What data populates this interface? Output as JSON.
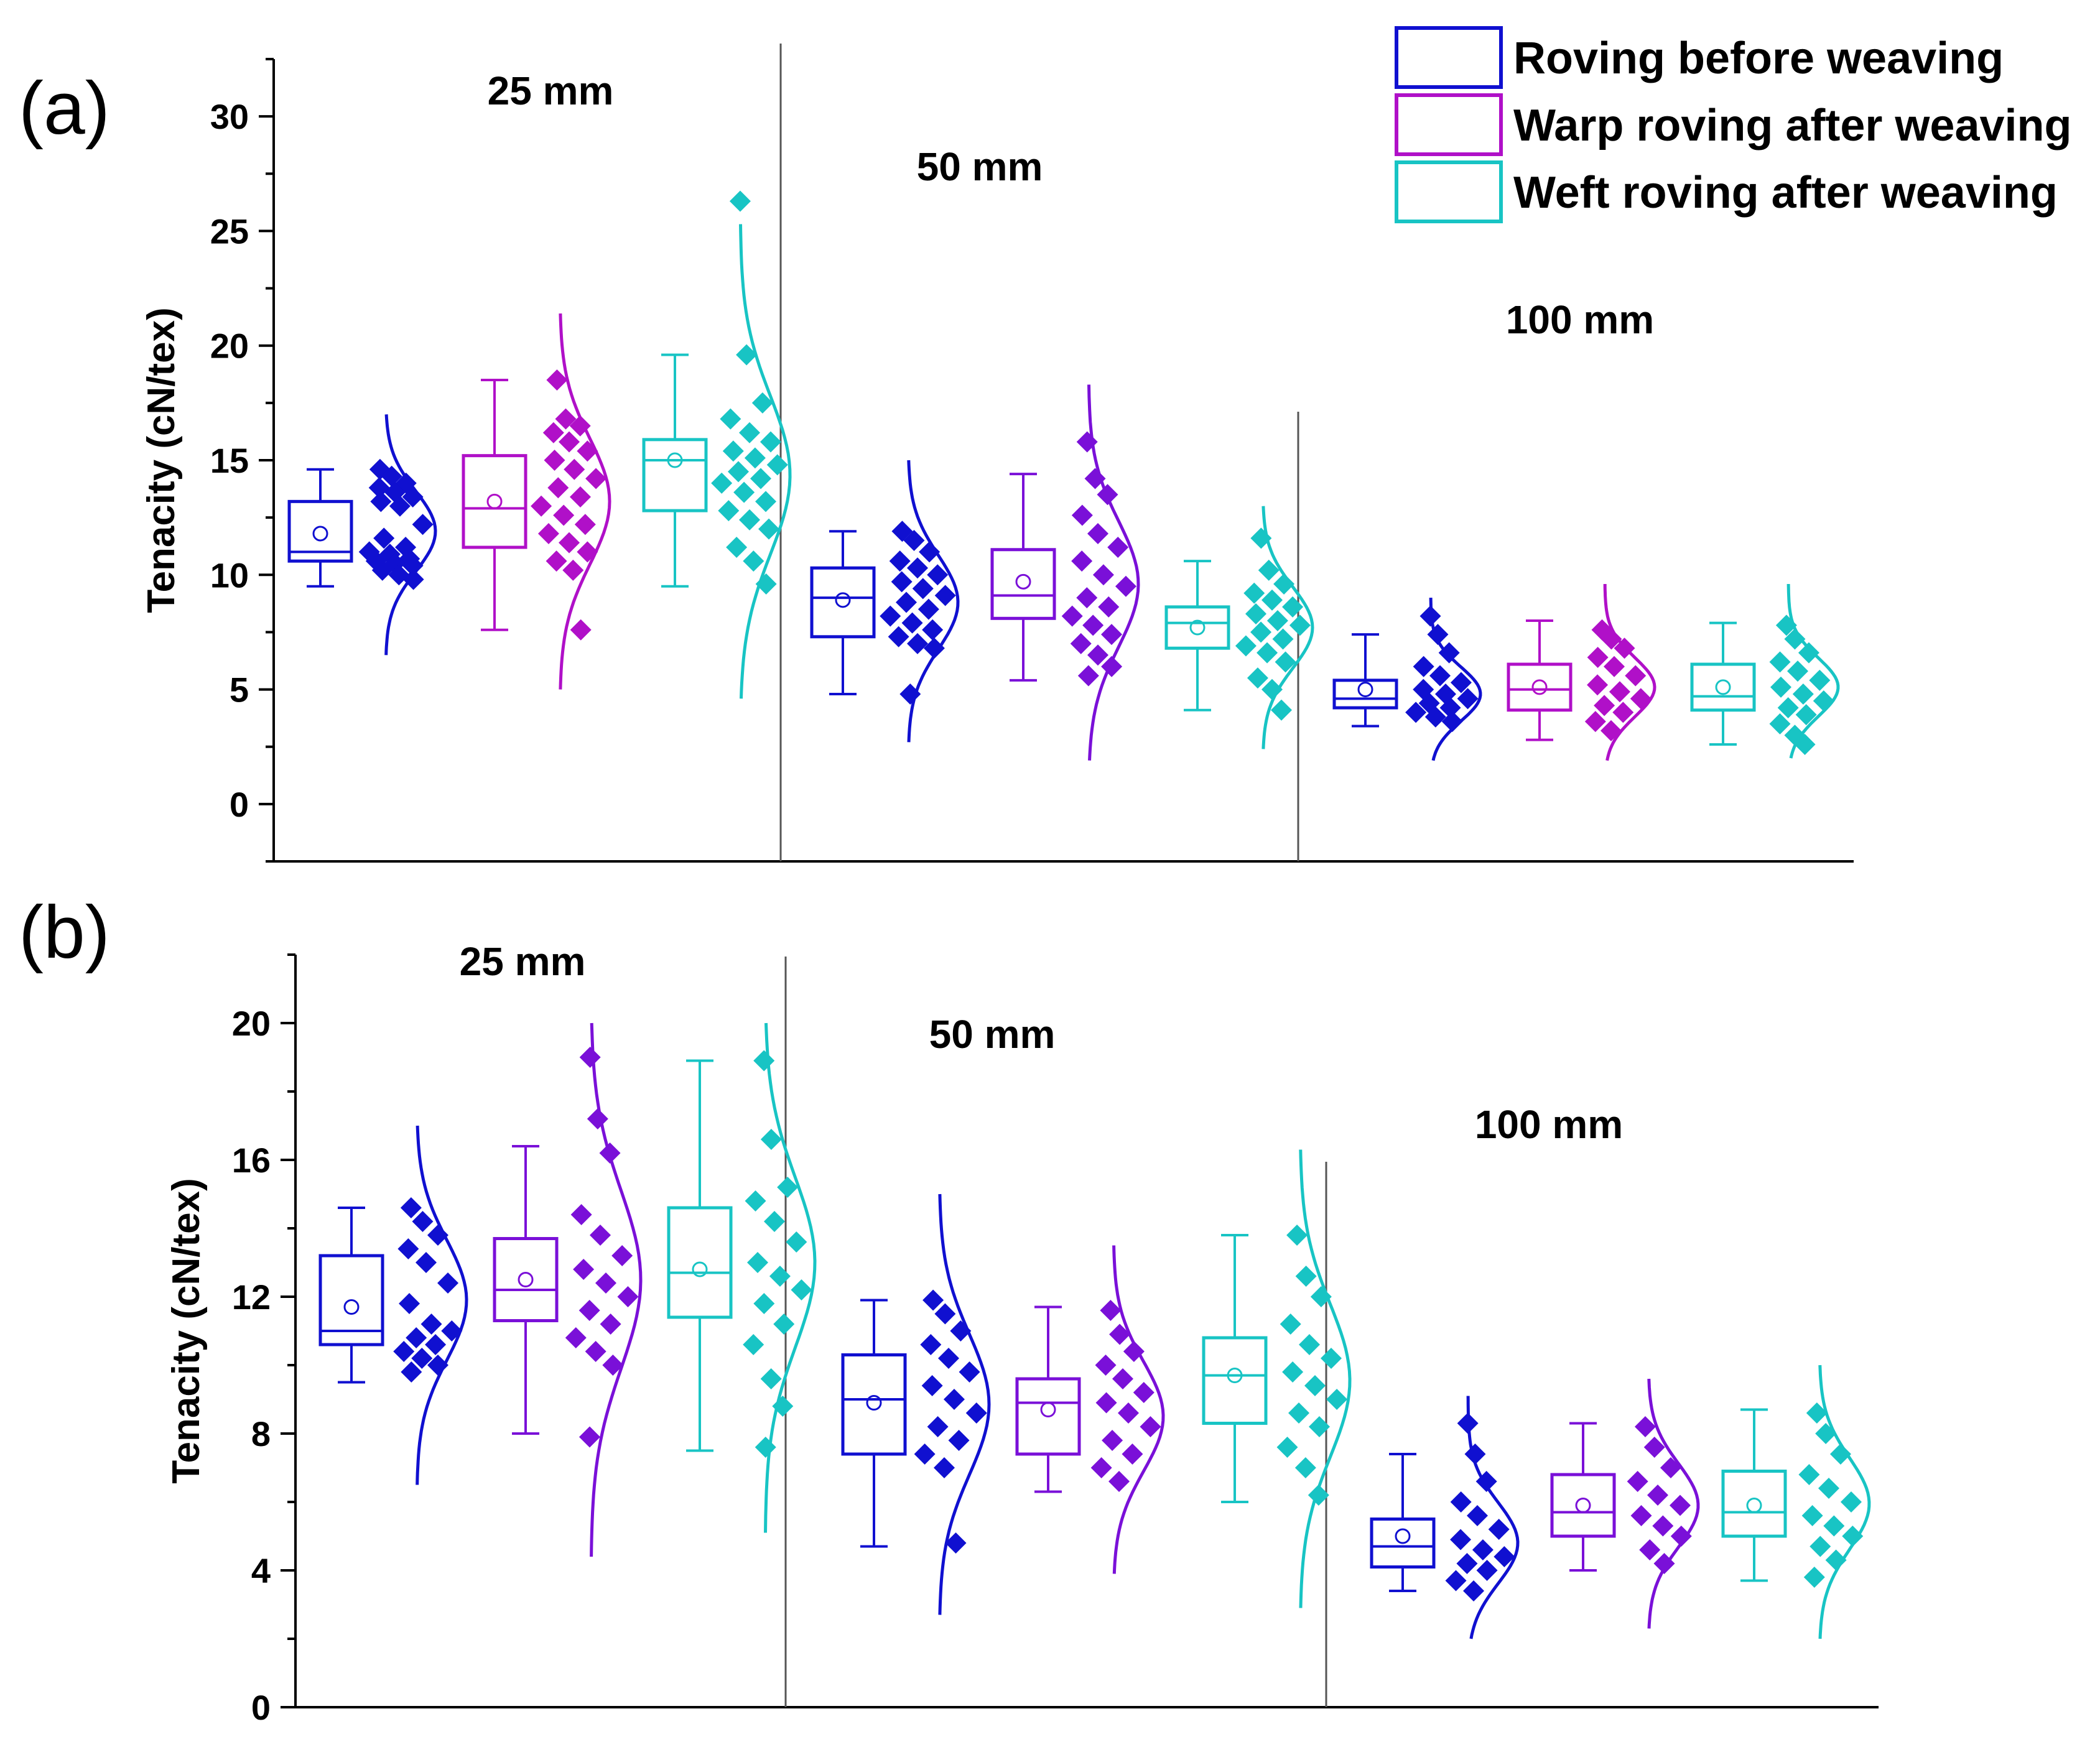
{
  "colors": {
    "roving_before": "#1010d0",
    "warp_after_a": "#b010c8",
    "warp_after_b": "#7a10d8",
    "weft_after": "#18c4c4"
  },
  "legend": {
    "position": "top-right",
    "items": [
      {
        "label": "Roving before weaving",
        "color": "#1010d0"
      },
      {
        "label": "Warp roving after weaving",
        "color": "#b010c8"
      },
      {
        "label": "Weft roving after weaving",
        "color": "#18c4c4"
      }
    ]
  },
  "chart_data": [
    {
      "type": "box",
      "panel_label": "(a)",
      "ylabel": "Tenacity (cN/tex)",
      "ylim": [
        -2.5,
        32.5
      ],
      "yticks": [
        0,
        5,
        10,
        15,
        20,
        25,
        30
      ],
      "groups": [
        {
          "label": "25 mm",
          "boxes": [
            {
              "series": "Roving before weaving",
              "color": "#1010d0",
              "whisker_low": 9.5,
              "q1": 10.6,
              "median": 11.0,
              "q3": 13.2,
              "whisker_high": 14.6,
              "mean": 11.8,
              "points": [
                14.6,
                14.3,
                14.0,
                13.8,
                13.6,
                13.4,
                13.2,
                13.0,
                12.2,
                11.6,
                11.2,
                11.0,
                10.9,
                10.7,
                10.6,
                10.5,
                10.4,
                10.2,
                10.0,
                9.8
              ],
              "curve_range": [
                6.5,
                17.0
              ]
            },
            {
              "series": "Warp roving after weaving",
              "color": "#b010c8",
              "whisker_low": 7.6,
              "q1": 11.2,
              "median": 12.9,
              "q3": 15.2,
              "whisker_high": 18.5,
              "mean": 13.2,
              "points": [
                18.5,
                16.8,
                16.5,
                16.2,
                15.8,
                15.4,
                15.0,
                14.6,
                14.2,
                13.8,
                13.4,
                13.0,
                12.6,
                12.2,
                11.8,
                11.4,
                11.0,
                10.6,
                10.2,
                7.6
              ],
              "curve_range": [
                5.0,
                21.4
              ]
            },
            {
              "series": "Weft roving after weaving",
              "color": "#18c4c4",
              "whisker_low": 9.5,
              "q1": 12.8,
              "median": 15.0,
              "q3": 15.9,
              "whisker_high": 19.6,
              "mean": 15.0,
              "points": [
                26.3,
                19.6,
                17.5,
                16.8,
                16.2,
                15.8,
                15.4,
                15.1,
                14.8,
                14.5,
                14.2,
                14.0,
                13.6,
                13.2,
                12.8,
                12.4,
                12.0,
                11.2,
                10.6,
                9.6
              ],
              "curve_range": [
                4.6,
                25.3
              ]
            }
          ]
        },
        {
          "label": "50 mm",
          "boxes": [
            {
              "series": "Roving before weaving",
              "color": "#1010d0",
              "whisker_low": 4.8,
              "q1": 7.3,
              "median": 9.0,
              "q3": 10.3,
              "whisker_high": 11.9,
              "mean": 8.9,
              "points": [
                11.9,
                11.5,
                11.0,
                10.6,
                10.3,
                10.0,
                9.7,
                9.4,
                9.1,
                8.8,
                8.5,
                8.2,
                7.9,
                7.6,
                7.3,
                7.0,
                6.8,
                4.8
              ],
              "curve_range": [
                2.7,
                15.0
              ]
            },
            {
              "series": "Warp roving after weaving",
              "color": "#7a10d8",
              "whisker_low": 5.4,
              "q1": 8.1,
              "median": 9.1,
              "q3": 11.1,
              "whisker_high": 14.4,
              "mean": 9.7,
              "points": [
                15.8,
                14.2,
                13.5,
                12.6,
                11.8,
                11.2,
                10.6,
                10.0,
                9.5,
                9.0,
                8.6,
                8.2,
                7.8,
                7.4,
                7.0,
                6.5,
                6.0,
                5.6
              ],
              "curve_range": [
                1.9,
                18.3
              ]
            },
            {
              "series": "Weft roving after weaving",
              "color": "#18c4c4",
              "whisker_low": 4.1,
              "q1": 6.8,
              "median": 7.9,
              "q3": 8.6,
              "whisker_high": 10.6,
              "mean": 7.7,
              "points": [
                11.6,
                10.2,
                9.6,
                9.2,
                8.9,
                8.6,
                8.3,
                8.0,
                7.8,
                7.5,
                7.2,
                6.9,
                6.6,
                6.2,
                5.5,
                5.0,
                4.1
              ],
              "curve_range": [
                2.4,
                13.0
              ]
            }
          ]
        },
        {
          "label": "100 mm",
          "boxes": [
            {
              "series": "Roving before weaving",
              "color": "#1010d0",
              "whisker_low": 3.4,
              "q1": 4.2,
              "median": 4.6,
              "q3": 5.4,
              "whisker_high": 7.4,
              "mean": 5.0,
              "points": [
                8.2,
                7.4,
                6.6,
                6.0,
                5.6,
                5.3,
                5.0,
                4.8,
                4.6,
                4.4,
                4.2,
                4.0,
                3.8,
                3.6
              ],
              "curve_range": [
                1.9,
                9.0
              ]
            },
            {
              "series": "Warp roving after weaving",
              "color": "#b010c8",
              "whisker_low": 2.8,
              "q1": 4.1,
              "median": 5.0,
              "q3": 6.1,
              "whisker_high": 8.0,
              "mean": 5.1,
              "points": [
                7.6,
                7.2,
                6.8,
                6.4,
                6.0,
                5.6,
                5.2,
                4.9,
                4.6,
                4.3,
                4.0,
                3.6,
                3.2
              ],
              "curve_range": [
                1.9,
                9.6
              ]
            },
            {
              "series": "Weft roving after weaving",
              "color": "#18c4c4",
              "whisker_low": 2.6,
              "q1": 4.1,
              "median": 4.7,
              "q3": 6.1,
              "whisker_high": 7.9,
              "mean": 5.1,
              "points": [
                7.8,
                7.2,
                6.6,
                6.2,
                5.8,
                5.4,
                5.1,
                4.8,
                4.5,
                4.2,
                3.9,
                3.5,
                3.0,
                2.6
              ],
              "curve_range": [
                2.0,
                9.6
              ]
            }
          ]
        }
      ]
    },
    {
      "type": "box",
      "panel_label": "(b)",
      "ylabel": "Tenacity (cN/tex)",
      "ylim": [
        0,
        22
      ],
      "yticks": [
        0,
        4,
        8,
        12,
        16,
        20
      ],
      "groups": [
        {
          "label": "25 mm",
          "boxes": [
            {
              "series": "Roving before weaving",
              "color": "#1010d0",
              "whisker_low": 9.5,
              "q1": 10.6,
              "median": 11.0,
              "q3": 13.2,
              "whisker_high": 14.6,
              "mean": 11.7,
              "points": [
                14.6,
                14.2,
                13.8,
                13.4,
                13.0,
                12.4,
                11.8,
                11.2,
                11.0,
                10.8,
                10.6,
                10.4,
                10.2,
                10.0,
                9.8
              ],
              "curve_range": [
                6.5,
                17.0
              ]
            },
            {
              "series": "Warp roving after weaving",
              "color": "#7a10d8",
              "whisker_low": 8.0,
              "q1": 11.3,
              "median": 12.2,
              "q3": 13.7,
              "whisker_high": 16.4,
              "mean": 12.5,
              "points": [
                19.0,
                17.2,
                16.2,
                14.4,
                13.8,
                13.2,
                12.8,
                12.4,
                12.0,
                11.6,
                11.2,
                10.8,
                10.4,
                10.0,
                7.9
              ],
              "curve_range": [
                4.4,
                20.0
              ]
            },
            {
              "series": "Weft roving after weaving",
              "color": "#18c4c4",
              "whisker_low": 7.5,
              "q1": 11.4,
              "median": 12.7,
              "q3": 14.6,
              "whisker_high": 18.9,
              "mean": 12.8,
              "points": [
                18.9,
                16.6,
                15.2,
                14.8,
                14.2,
                13.6,
                13.0,
                12.6,
                12.2,
                11.8,
                11.2,
                10.6,
                9.6,
                8.8,
                7.6
              ],
              "curve_range": [
                5.1,
                20.0
              ]
            }
          ]
        },
        {
          "label": "50 mm",
          "boxes": [
            {
              "series": "Roving before weaving",
              "color": "#1010d0",
              "whisker_low": 4.7,
              "q1": 7.4,
              "median": 9.0,
              "q3": 10.3,
              "whisker_high": 11.9,
              "mean": 8.9,
              "points": [
                11.9,
                11.5,
                11.0,
                10.6,
                10.2,
                9.8,
                9.4,
                9.0,
                8.6,
                8.2,
                7.8,
                7.4,
                7.0,
                4.8
              ],
              "curve_range": [
                2.7,
                15.0
              ]
            },
            {
              "series": "Warp roving after weaving",
              "color": "#7a10d8",
              "whisker_low": 6.3,
              "q1": 7.4,
              "median": 8.9,
              "q3": 9.6,
              "whisker_high": 11.7,
              "mean": 8.7,
              "points": [
                11.6,
                10.9,
                10.4,
                10.0,
                9.6,
                9.2,
                8.9,
                8.6,
                8.2,
                7.8,
                7.4,
                7.0,
                6.6
              ],
              "curve_range": [
                3.9,
                13.5
              ]
            },
            {
              "series": "Weft roving after weaving",
              "color": "#18c4c4",
              "whisker_low": 6.0,
              "q1": 8.3,
              "median": 9.7,
              "q3": 10.8,
              "whisker_high": 13.8,
              "mean": 9.7,
              "points": [
                13.8,
                12.6,
                12.0,
                11.2,
                10.6,
                10.2,
                9.8,
                9.4,
                9.0,
                8.6,
                8.2,
                7.6,
                7.0,
                6.2
              ],
              "curve_range": [
                2.9,
                16.3
              ]
            }
          ]
        },
        {
          "label": "100 mm",
          "boxes": [
            {
              "series": "Roving before weaving",
              "color": "#1010d0",
              "whisker_low": 3.4,
              "q1": 4.1,
              "median": 4.7,
              "q3": 5.5,
              "whisker_high": 7.4,
              "mean": 5.0,
              "points": [
                8.3,
                7.4,
                6.6,
                6.0,
                5.6,
                5.2,
                4.9,
                4.6,
                4.4,
                4.2,
                4.0,
                3.7,
                3.4
              ],
              "curve_range": [
                2.0,
                9.1
              ]
            },
            {
              "series": "Warp roving after weaving",
              "color": "#7a10d8",
              "whisker_low": 4.0,
              "q1": 5.0,
              "median": 5.7,
              "q3": 6.8,
              "whisker_high": 8.3,
              "mean": 5.9,
              "points": [
                8.2,
                7.6,
                7.0,
                6.6,
                6.2,
                5.9,
                5.6,
                5.3,
                5.0,
                4.6,
                4.2
              ],
              "curve_range": [
                2.3,
                9.6
              ]
            },
            {
              "series": "Weft roving after weaving",
              "color": "#18c4c4",
              "whisker_low": 3.7,
              "q1": 5.0,
              "median": 5.7,
              "q3": 6.9,
              "whisker_high": 8.7,
              "mean": 5.9,
              "points": [
                8.6,
                8.0,
                7.4,
                6.8,
                6.4,
                6.0,
                5.6,
                5.3,
                5.0,
                4.7,
                4.3,
                3.8
              ],
              "curve_range": [
                2.0,
                10.0
              ]
            }
          ]
        }
      ]
    }
  ]
}
